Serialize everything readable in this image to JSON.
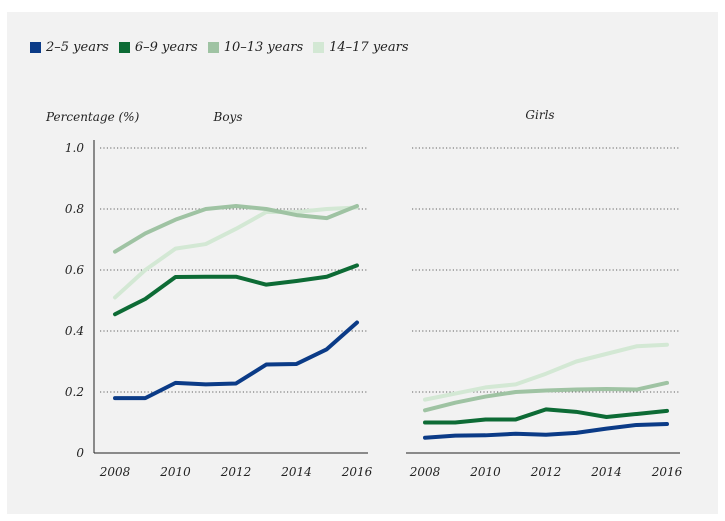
{
  "chart_data": {
    "type": "line",
    "legend_position": "top-left",
    "ylabel": "Percentage (%)",
    "ylim": [
      0,
      1.0
    ],
    "yticks": [
      "1.0",
      "0.8",
      "0.6",
      "0.4",
      "0.2",
      "0"
    ],
    "xticks": [
      "2008",
      "2010",
      "2012",
      "2014",
      "2016"
    ],
    "grid": "horizontal dotted",
    "series_meta": [
      {
        "name": "2–5 years",
        "color": "#0b3b87"
      },
      {
        "name": "6–9 years",
        "color": "#0d6b35"
      },
      {
        "name": "10–13 years",
        "color": "#9fc3a3"
      },
      {
        "name": "14–17 years",
        "color": "#d3e8d4"
      }
    ],
    "panels": [
      {
        "title": "Boys",
        "x": [
          2008,
          2009,
          2010,
          2011,
          2012,
          2013,
          2014,
          2015,
          2016
        ],
        "series": [
          {
            "name": "2–5 years",
            "values": [
              0.18,
              0.18,
              0.23,
              0.225,
              0.228,
              0.29,
              0.292,
              0.34,
              0.428
            ]
          },
          {
            "name": "6–9 years",
            "values": [
              0.455,
              0.505,
              0.577,
              0.578,
              0.578,
              0.552,
              0.564,
              0.578,
              0.615
            ]
          },
          {
            "name": "10–13 years",
            "values": [
              0.66,
              0.72,
              0.765,
              0.8,
              0.81,
              0.8,
              0.78,
              0.77,
              0.81
            ]
          },
          {
            "name": "14–17 years",
            "values": [
              0.51,
              0.6,
              0.67,
              0.685,
              0.735,
              0.79,
              0.79,
              0.8,
              0.805
            ]
          }
        ]
      },
      {
        "title": "Girls",
        "x": [
          2008,
          2009,
          2010,
          2011,
          2012,
          2013,
          2014,
          2015,
          2016
        ],
        "series": [
          {
            "name": "2–5 years",
            "values": [
              0.05,
              0.057,
              0.058,
              0.063,
              0.06,
              0.066,
              0.08,
              0.092,
              0.095
            ]
          },
          {
            "name": "6–9 years",
            "values": [
              0.1,
              0.1,
              0.11,
              0.11,
              0.143,
              0.135,
              0.118,
              0.128,
              0.138
            ]
          },
          {
            "name": "10–13 years",
            "values": [
              0.14,
              0.165,
              0.185,
              0.2,
              0.205,
              0.208,
              0.21,
              0.208,
              0.23
            ]
          },
          {
            "name": "14–17 years",
            "values": [
              0.175,
              0.195,
              0.215,
              0.225,
              0.26,
              0.3,
              0.325,
              0.35,
              0.355
            ]
          }
        ]
      }
    ]
  }
}
